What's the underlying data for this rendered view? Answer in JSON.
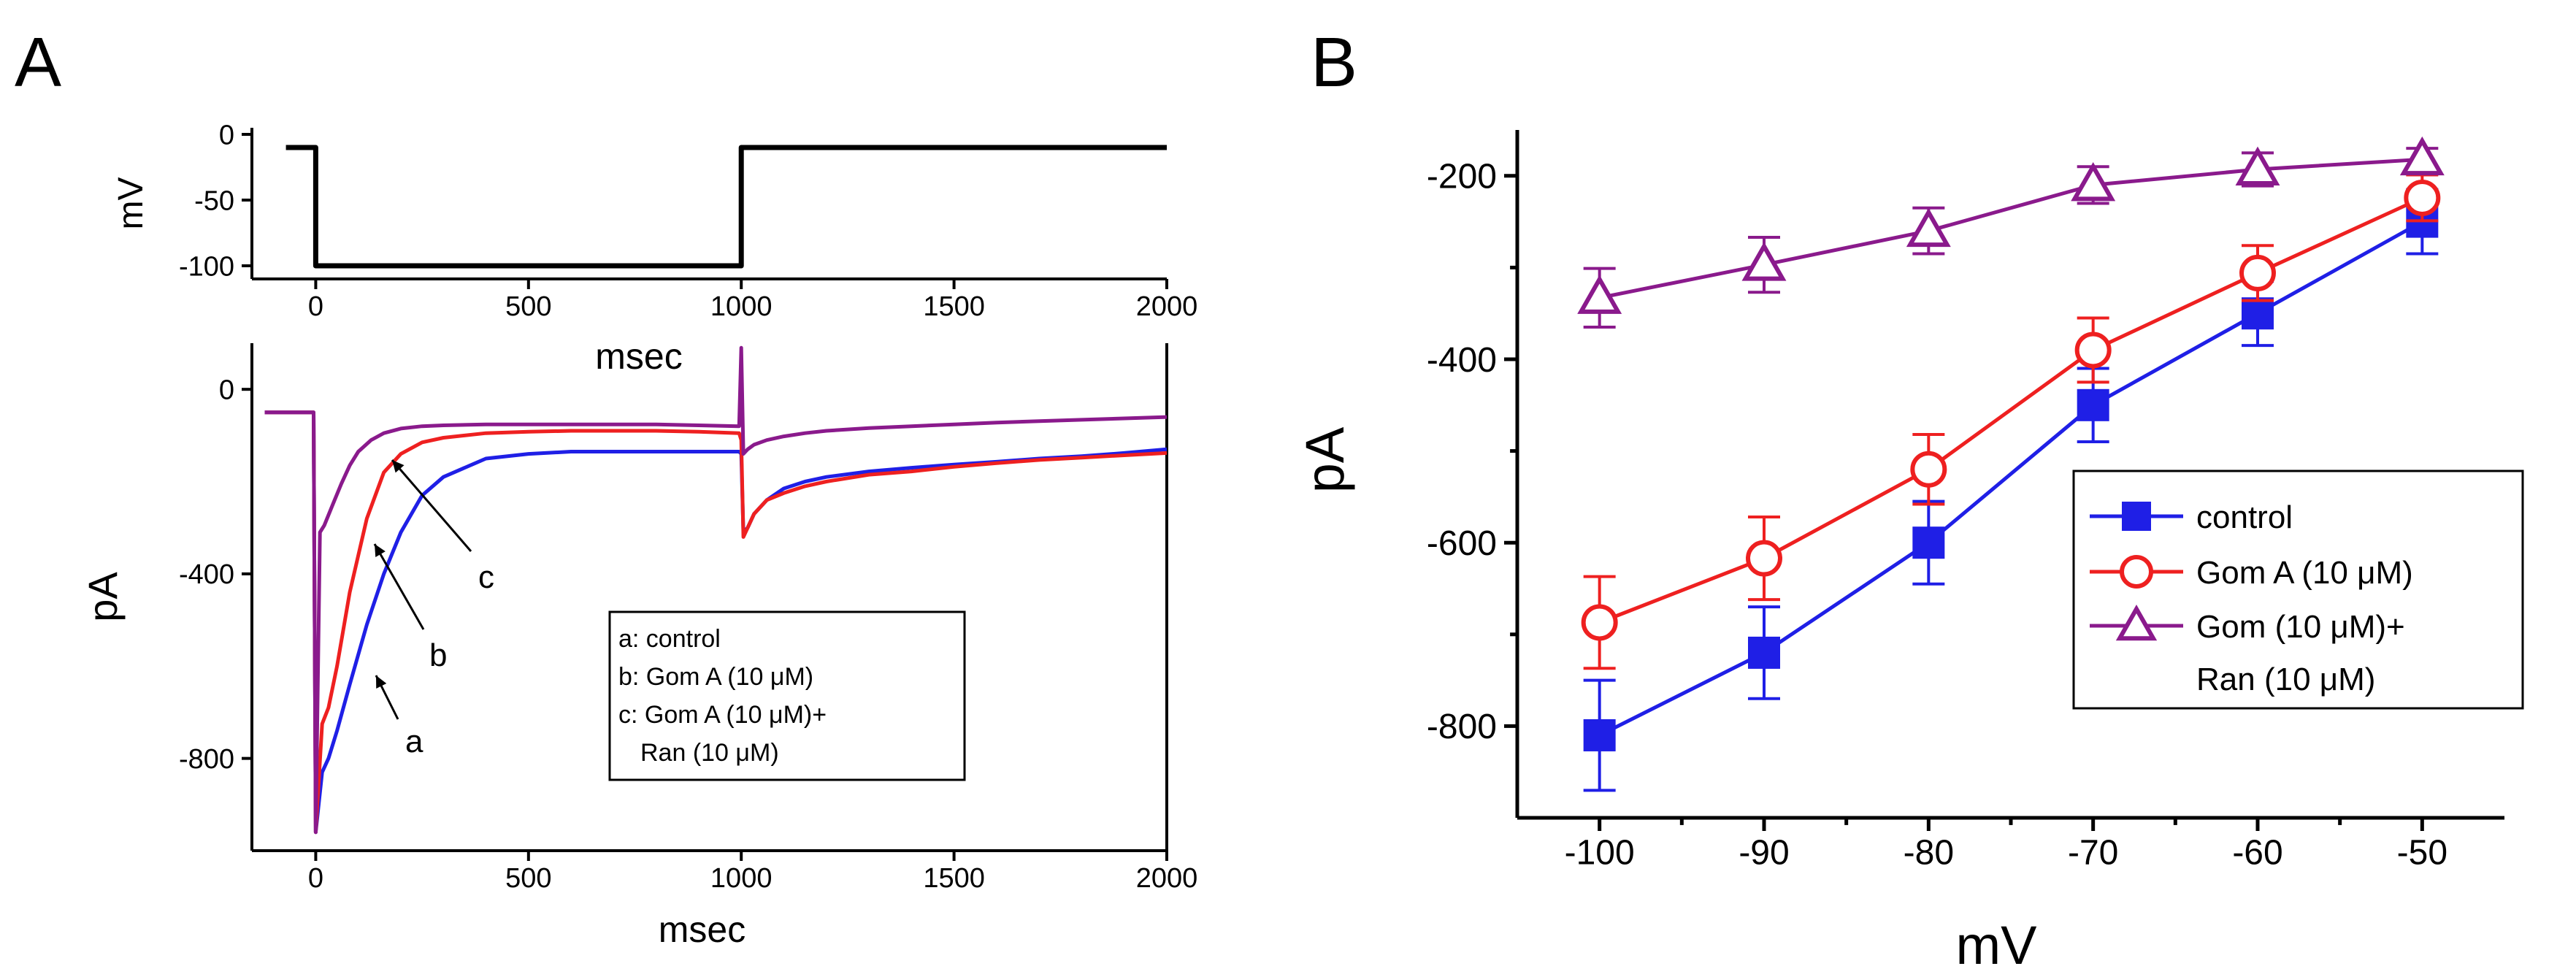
{
  "panels": {
    "A": {
      "label": "A"
    },
    "B": {
      "label": "B"
    }
  },
  "colors": {
    "control": "#1f1fe6",
    "gom_a": "#ee2020",
    "gom_ran": "#8a1a8c",
    "axis": "#000000"
  },
  "chart_data": [
    {
      "id": "A-protocol",
      "type": "line",
      "title": "",
      "xlabel": "msec",
      "ylabel": "mV",
      "xlim": [
        -150,
        2000
      ],
      "ylim": [
        -110,
        5
      ],
      "xticks": [
        0,
        500,
        1000,
        1500,
        2000
      ],
      "yticks": [
        0,
        -50,
        -100
      ],
      "series": [
        {
          "name": "voltage step",
          "x": [
            -70,
            0,
            0,
            1000,
            1000,
            2000
          ],
          "y": [
            -10,
            -10,
            -100,
            -100,
            -10,
            -10
          ]
        }
      ]
    },
    {
      "id": "A-currents",
      "type": "line",
      "title": "",
      "xlabel": "msec",
      "ylabel": "pA",
      "xlim": [
        -150,
        2000
      ],
      "ylim": [
        -1000,
        100
      ],
      "xticks": [
        0,
        500,
        1000,
        1500,
        2000
      ],
      "yticks": [
        0,
        -400,
        -800
      ],
      "legend": {
        "position": "center-right",
        "entries": [
          "a: control",
          "b: Gom A (10 μM)",
          "c: Gom A (10 μM)+",
          "Ran (10 μM)"
        ]
      },
      "annotations": [
        "a",
        "b",
        "c"
      ],
      "series": [
        {
          "name": "a: control",
          "x": [
            -120,
            -5,
            0,
            15,
            30,
            50,
            80,
            120,
            160,
            200,
            250,
            300,
            400,
            500,
            600,
            700,
            800,
            900,
            995,
            1000,
            1005,
            1015,
            1030,
            1060,
            1100,
            1150,
            1200,
            1300,
            1400,
            1500,
            1600,
            1700,
            1800,
            1900,
            2000
          ],
          "y": [
            -50,
            -50,
            -960,
            -830,
            -800,
            -740,
            -640,
            -510,
            -400,
            -310,
            -230,
            -190,
            -150,
            -140,
            -135,
            -135,
            -135,
            -135,
            -135,
            -140,
            -310,
            -300,
            -270,
            -240,
            -215,
            -200,
            -190,
            -178,
            -170,
            -163,
            -157,
            -150,
            -145,
            -138,
            -130
          ]
        },
        {
          "name": "b: Gom A (10 μM)",
          "x": [
            -120,
            -5,
            0,
            15,
            30,
            50,
            80,
            120,
            160,
            200,
            250,
            300,
            400,
            500,
            600,
            700,
            800,
            900,
            995,
            1000,
            1005,
            1015,
            1030,
            1060,
            1100,
            1150,
            1200,
            1300,
            1400,
            1500,
            1600,
            1700,
            1800,
            1900,
            2000
          ],
          "y": [
            -50,
            -50,
            -960,
            -725,
            -690,
            -600,
            -440,
            -280,
            -180,
            -140,
            -115,
            -105,
            -95,
            -92,
            -90,
            -90,
            -90,
            -92,
            -95,
            -110,
            -320,
            -300,
            -270,
            -240,
            -225,
            -210,
            -200,
            -185,
            -178,
            -168,
            -160,
            -153,
            -148,
            -143,
            -138
          ]
        },
        {
          "name": "c: Gom A (10 μM)+ Ran (10 μM)",
          "x": [
            -120,
            -5,
            0,
            10,
            20,
            40,
            60,
            80,
            100,
            130,
            160,
            200,
            250,
            300,
            400,
            500,
            600,
            700,
            800,
            900,
            995,
            1000,
            1005,
            1015,
            1030,
            1060,
            1100,
            1150,
            1200,
            1300,
            1400,
            1500,
            1600,
            1700,
            1800,
            1900,
            2000
          ],
          "y": [
            -50,
            -50,
            -960,
            -310,
            -295,
            -250,
            -205,
            -165,
            -135,
            -110,
            -95,
            -85,
            -80,
            -78,
            -76,
            -76,
            -76,
            -76,
            -76,
            -78,
            -80,
            90,
            -140,
            -130,
            -120,
            -110,
            -102,
            -95,
            -90,
            -84,
            -80,
            -76,
            -72,
            -69,
            -66,
            -63,
            -60
          ]
        }
      ]
    },
    {
      "id": "B-iv",
      "type": "line",
      "title": "",
      "xlabel": "mV",
      "ylabel": "pA",
      "xlim": [
        -105,
        -45
      ],
      "ylim": [
        -900,
        -150
      ],
      "xticks": [
        -100,
        -90,
        -80,
        -70,
        -60,
        -50
      ],
      "yticks": [
        -200,
        -400,
        -600,
        -800
      ],
      "legend": {
        "position": "center-right",
        "entries": [
          "control",
          "Gom A (10 μM)",
          "Gom (10 μM)+",
          "Ran (10 μM)"
        ]
      },
      "series": [
        {
          "name": "control",
          "marker": "square",
          "x": [
            -100,
            -90,
            -80,
            -70,
            -60,
            -50
          ],
          "y": [
            -810,
            -720,
            -600,
            -450,
            -350,
            -250
          ],
          "err": [
            60,
            50,
            45,
            40,
            35,
            35
          ]
        },
        {
          "name": "Gom A (10 μM)",
          "marker": "circle",
          "x": [
            -100,
            -90,
            -80,
            -70,
            -60,
            -50
          ],
          "y": [
            -687,
            -617,
            -520,
            -390,
            -306,
            -224
          ],
          "err": [
            50,
            45,
            38,
            35,
            30,
            25
          ]
        },
        {
          "name": "Gom (10 μM)+ Ran (10 μM)",
          "marker": "triangle",
          "x": [
            -100,
            -90,
            -80,
            -70,
            -60,
            -50
          ],
          "y": [
            -333,
            -297,
            -260,
            -210,
            -193,
            -182
          ],
          "err": [
            32,
            30,
            25,
            20,
            18,
            12
          ]
        }
      ]
    }
  ]
}
